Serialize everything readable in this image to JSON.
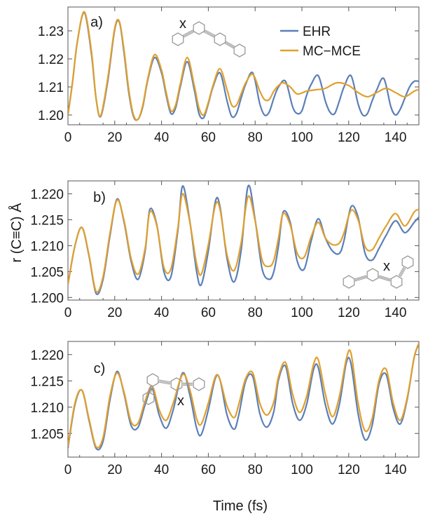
{
  "colors": {
    "EHR": "#5B7FB8",
    "MC-MCE": "#E0A02E",
    "axis": "#555555",
    "molecule": "#9a9a9a"
  },
  "legend": {
    "position": "top-right of panel a",
    "entries": [
      "EHR",
      "MC−MCE"
    ]
  },
  "shared_xlabel": "Time (fs)",
  "shared_ylabel": "r (C≡C) Å",
  "chart_data": [
    {
      "type": "line",
      "panel": "a)",
      "marker": "x",
      "xlim": [
        0,
        150
      ],
      "ylim": [
        1.1965,
        1.2385
      ],
      "xticks": [
        0,
        20,
        40,
        60,
        80,
        100,
        120,
        140
      ],
      "yticks": [
        1.2,
        1.21,
        1.22,
        1.23
      ],
      "ytick_labels": [
        "1.20",
        "1.21",
        "1.22",
        "1.23"
      ],
      "series": [
        {
          "name": "EHR",
          "x": [
            0,
            2,
            4,
            7,
            10,
            12,
            14,
            17,
            20,
            22,
            24,
            26,
            28,
            30,
            32,
            34,
            37,
            40,
            42,
            44,
            46,
            48,
            51,
            54,
            56,
            58,
            60,
            62,
            65,
            68,
            70,
            72,
            74,
            76,
            79,
            82,
            84,
            86,
            88,
            90,
            93,
            96,
            98,
            100,
            102,
            104,
            107,
            110,
            112,
            114,
            116,
            118,
            121,
            124,
            126,
            128,
            130,
            132,
            135,
            138,
            140,
            142,
            144,
            146,
            148,
            150
          ],
          "values": [
            1.2,
            1.212,
            1.226,
            1.2365,
            1.222,
            1.206,
            1.1995,
            1.212,
            1.2305,
            1.233,
            1.222,
            1.208,
            1.1995,
            1.1985,
            1.203,
            1.212,
            1.2205,
            1.215,
            1.207,
            1.2005,
            1.2025,
            1.21,
            1.219,
            1.209,
            1.2005,
            1.199,
            1.204,
            1.21,
            1.215,
            1.205,
            1.1995,
            1.2005,
            1.206,
            1.211,
            1.215,
            1.204,
            1.2,
            1.201,
            1.206,
            1.21,
            1.212,
            1.203,
            1.2005,
            1.2015,
            1.207,
            1.211,
            1.214,
            1.205,
            1.201,
            1.2005,
            1.205,
            1.21,
            1.214,
            1.204,
            1.2,
            1.2005,
            1.205,
            1.209,
            1.213,
            1.203,
            1.2,
            1.202,
            1.206,
            1.21,
            1.212,
            1.212
          ]
        },
        {
          "name": "MC−MCE",
          "x": [
            0,
            2,
            4,
            7,
            10,
            12,
            14,
            17,
            20,
            22,
            24,
            26,
            28,
            30,
            32,
            34,
            37,
            40,
            42,
            44,
            46,
            48,
            51,
            54,
            56,
            58,
            60,
            62,
            65,
            68,
            70,
            72,
            74,
            76,
            79,
            82,
            84,
            86,
            88,
            90,
            92,
            95,
            98,
            102,
            106,
            110,
            115,
            120,
            124,
            128,
            132,
            136,
            140,
            144,
            148,
            150
          ],
          "values": [
            1.2,
            1.212,
            1.226,
            1.2368,
            1.223,
            1.206,
            1.1998,
            1.213,
            1.231,
            1.2333,
            1.223,
            1.209,
            1.2,
            1.1985,
            1.2035,
            1.2125,
            1.2215,
            1.216,
            1.208,
            1.2015,
            1.2035,
            1.211,
            1.2205,
            1.2105,
            1.2025,
            1.2,
            1.2045,
            1.2105,
            1.2165,
            1.209,
            1.2035,
            1.2035,
            1.2075,
            1.2115,
            1.2145,
            1.2085,
            1.2055,
            1.2055,
            1.2085,
            1.2105,
            1.2115,
            1.21,
            1.2075,
            1.2085,
            1.209,
            1.2095,
            1.2115,
            1.2105,
            1.208,
            1.2065,
            1.208,
            1.2095,
            1.208,
            1.2065,
            1.2085,
            1.209
          ]
        }
      ]
    },
    {
      "type": "line",
      "panel": "b)",
      "marker": "x",
      "xlim": [
        0,
        150
      ],
      "ylim": [
        1.1995,
        1.2225
      ],
      "xticks": [
        0,
        20,
        40,
        60,
        80,
        100,
        120,
        140
      ],
      "yticks": [
        1.2,
        1.205,
        1.21,
        1.215,
        1.22
      ],
      "ytick_labels": [
        "1.200",
        "1.205",
        "1.210",
        "1.215",
        "1.220"
      ],
      "series": [
        {
          "name": "EHR",
          "x": [
            0,
            3,
            6,
            9,
            12,
            15,
            18,
            21,
            24,
            27,
            30,
            33,
            35,
            38,
            41,
            44,
            47,
            49,
            52,
            55,
            57,
            60,
            63,
            65,
            68,
            71,
            74,
            77,
            80,
            83,
            86,
            88,
            90,
            92,
            95,
            98,
            101,
            104,
            107,
            110,
            113,
            116,
            118,
            121,
            124,
            127,
            130,
            133,
            136,
            140,
            144,
            148,
            150
          ],
          "values": [
            1.2025,
            1.21,
            1.2135,
            1.208,
            1.2008,
            1.2035,
            1.212,
            1.219,
            1.2145,
            1.207,
            1.2035,
            1.209,
            1.217,
            1.214,
            1.205,
            1.204,
            1.213,
            1.2215,
            1.215,
            1.205,
            1.2025,
            1.209,
            1.2185,
            1.2175,
            1.2075,
            1.203,
            1.209,
            1.2215,
            1.215,
            1.2055,
            1.2035,
            1.205,
            1.21,
            1.2165,
            1.2145,
            1.207,
            1.2055,
            1.211,
            1.2152,
            1.2115,
            1.209,
            1.2085,
            1.211,
            1.2175,
            1.2155,
            1.2085,
            1.2072,
            1.2095,
            1.212,
            1.2148,
            1.2125,
            1.2145,
            1.2155
          ]
        },
        {
          "name": "MC−MCE",
          "x": [
            0,
            3,
            6,
            9,
            12,
            15,
            18,
            21,
            24,
            27,
            30,
            33,
            35,
            38,
            41,
            44,
            47,
            49,
            52,
            55,
            57,
            60,
            63,
            65,
            68,
            71,
            74,
            77,
            80,
            83,
            86,
            88,
            90,
            92,
            95,
            98,
            101,
            104,
            107,
            110,
            113,
            116,
            118,
            121,
            124,
            127,
            130,
            133,
            136,
            140,
            144,
            148,
            150
          ],
          "values": [
            1.2025,
            1.21,
            1.2135,
            1.2082,
            1.2012,
            1.204,
            1.2125,
            1.2188,
            1.2148,
            1.2075,
            1.2045,
            1.2095,
            1.2165,
            1.2138,
            1.2058,
            1.2055,
            1.2135,
            1.22,
            1.2148,
            1.2065,
            1.2045,
            1.2102,
            1.2178,
            1.217,
            1.2082,
            1.2052,
            1.2105,
            1.2195,
            1.2148,
            1.2072,
            1.206,
            1.2072,
            1.2115,
            1.2162,
            1.214,
            1.2085,
            1.2078,
            1.2118,
            1.2145,
            1.2115,
            1.2102,
            1.2105,
            1.2125,
            1.2168,
            1.215,
            1.2098,
            1.2092,
            1.2115,
            1.2138,
            1.2162,
            1.2138,
            1.2165,
            1.217
          ]
        }
      ]
    },
    {
      "type": "line",
      "panel": "c)",
      "marker": "x",
      "xlim": [
        0,
        150
      ],
      "ylim": [
        1.2005,
        1.2225
      ],
      "xticks": [
        0,
        20,
        40,
        60,
        80,
        100,
        120,
        140
      ],
      "yticks": [
        1.205,
        1.21,
        1.215,
        1.22
      ],
      "ytick_labels": [
        "1.205",
        "1.210",
        "1.215",
        "1.220"
      ],
      "series": [
        {
          "name": "EHR",
          "x": [
            0,
            3,
            6,
            9,
            12,
            15,
            18,
            21,
            24,
            27,
            30,
            33,
            36,
            39,
            42,
            45,
            49,
            52,
            55,
            57,
            60,
            63,
            65,
            68,
            71,
            73,
            76,
            79,
            82,
            85,
            88,
            90,
            93,
            96,
            99,
            102,
            105,
            107,
            110,
            113,
            116,
            119,
            121,
            124,
            127,
            130,
            133,
            136,
            139,
            142,
            145,
            148,
            150
          ],
          "values": [
            1.2022,
            1.2105,
            1.2132,
            1.2075,
            1.2022,
            1.2035,
            1.2115,
            1.2168,
            1.2125,
            1.2065,
            1.2062,
            1.2105,
            1.2135,
            1.2085,
            1.206,
            1.2095,
            1.2165,
            1.2125,
            1.206,
            1.2048,
            1.2095,
            1.2155,
            1.2152,
            1.2085,
            1.2058,
            1.2085,
            1.215,
            1.2158,
            1.2088,
            1.2062,
            1.2092,
            1.2152,
            1.2178,
            1.2108,
            1.2075,
            1.2105,
            1.2172,
            1.2175,
            1.2105,
            1.2068,
            1.2105,
            1.2185,
            1.2182,
            1.2088,
            1.2038,
            1.2065,
            1.2145,
            1.2162,
            1.2098,
            1.2068,
            1.2115,
            1.2195,
            1.222
          ]
        },
        {
          "name": "MC−MCE",
          "x": [
            0,
            3,
            6,
            9,
            12,
            15,
            18,
            21,
            24,
            27,
            30,
            33,
            36,
            39,
            42,
            45,
            49,
            52,
            55,
            57,
            60,
            63,
            65,
            68,
            71,
            73,
            76,
            79,
            82,
            85,
            88,
            90,
            93,
            96,
            99,
            102,
            105,
            107,
            110,
            113,
            116,
            119,
            121,
            124,
            127,
            130,
            133,
            136,
            139,
            142,
            145,
            148,
            150
          ],
          "values": [
            1.2025,
            1.2108,
            1.2132,
            1.2078,
            1.2025,
            1.2042,
            1.2122,
            1.2165,
            1.2128,
            1.2072,
            1.207,
            1.2112,
            1.214,
            1.2095,
            1.2075,
            1.2108,
            1.2162,
            1.2135,
            1.2078,
            1.2068,
            1.2108,
            1.2158,
            1.2152,
            1.2102,
            1.208,
            1.2105,
            1.2155,
            1.2165,
            1.2108,
            1.2085,
            1.211,
            1.2158,
            1.2185,
            1.2125,
            1.209,
            1.212,
            1.2182,
            1.219,
            1.2125,
            1.2082,
            1.212,
            1.2192,
            1.2202,
            1.2108,
            1.2055,
            1.2078,
            1.2152,
            1.2172,
            1.2108,
            1.2075,
            1.2118,
            1.2195,
            1.2222
          ]
        }
      ]
    }
  ]
}
